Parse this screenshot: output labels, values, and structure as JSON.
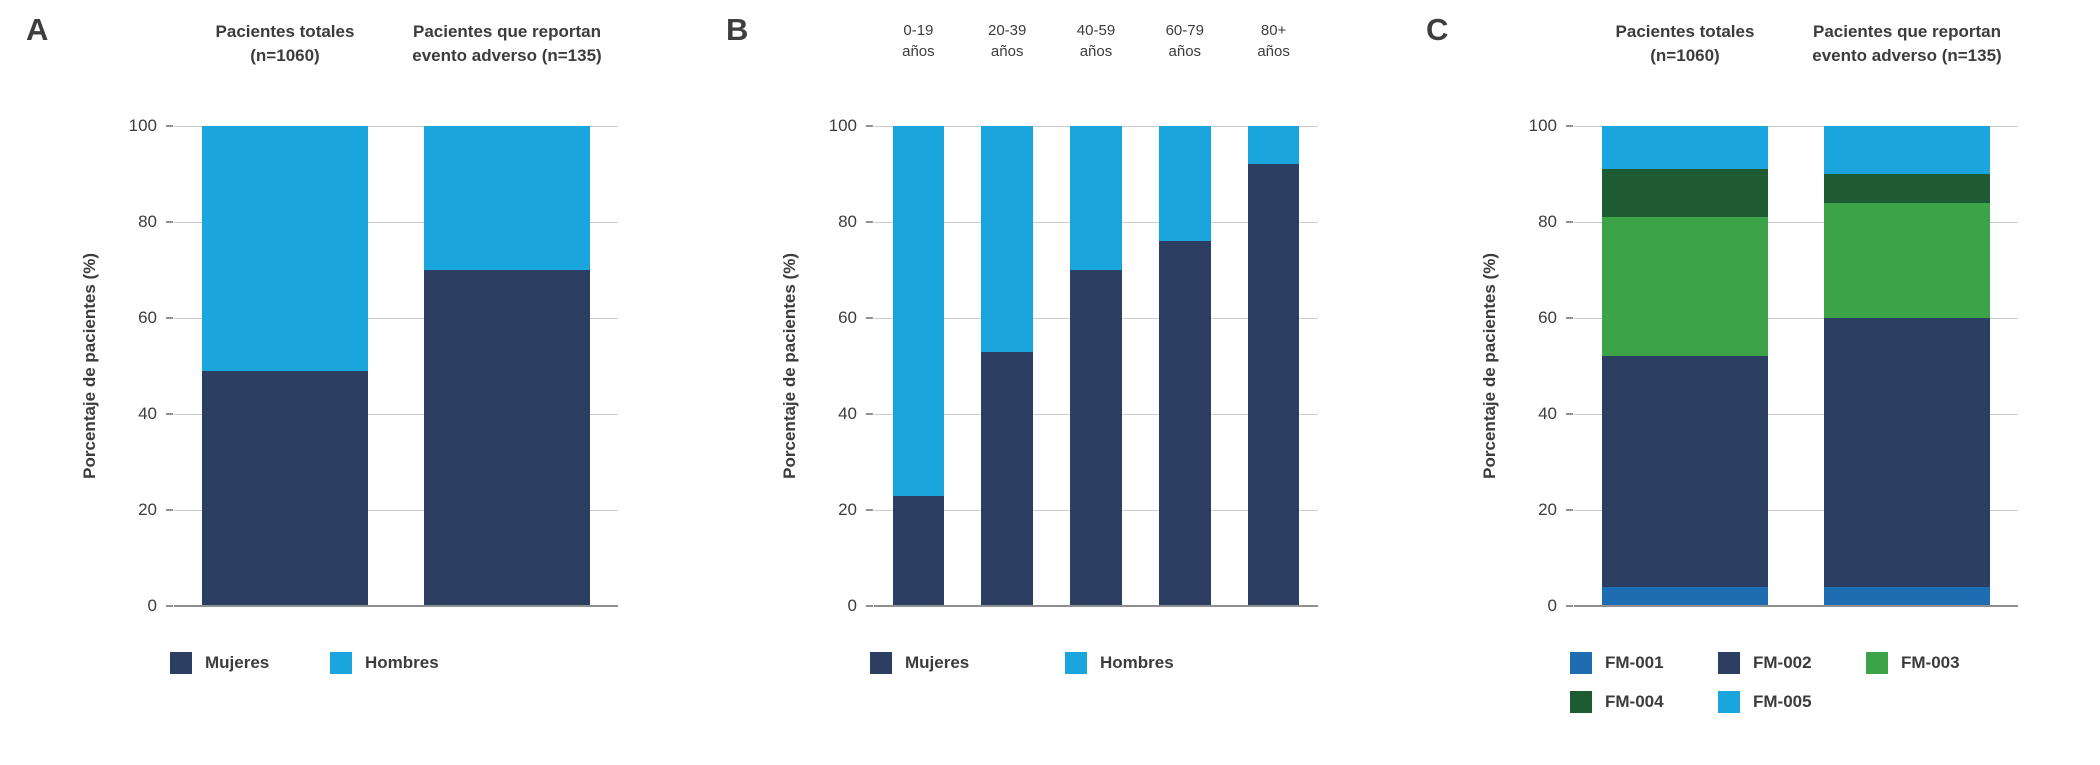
{
  "figure": {
    "background": "#ffffff",
    "y_axis_label": "Porcentaje de pacientes (%)"
  },
  "colors": {
    "mujeres_navy": "#2d3e63",
    "hombres_cyan": "#1aa6dc",
    "fm001_blue": "#1e6cb2",
    "fm002_navy": "#2d3e63",
    "fm003_green": "#3da348",
    "fm004_dark_green": "#1f5b32",
    "fm005_cyan": "#1aa6dc",
    "gridline": "#cdcdcd",
    "baseline": "#8f8f8f",
    "text": "#3c3c3c"
  },
  "chart_data": [
    {
      "panel": "A",
      "type": "bar",
      "stacked": true,
      "ylabel": "Porcentaje de pacientes (%)",
      "ylim": [
        0,
        100
      ],
      "yticks": [
        0,
        20,
        40,
        60,
        80,
        100
      ],
      "grid": true,
      "legend_position": "bottom",
      "categories": [
        [
          "Pacientes totales",
          "(n=1060)"
        ],
        [
          "Pacientes que reportan",
          "evento adverso (n=135)"
        ]
      ],
      "series": [
        {
          "name": "Mujeres",
          "color": "#2d3e63",
          "values": [
            49,
            70
          ]
        },
        {
          "name": "Hombres",
          "color": "#1aa6dc",
          "values": [
            51,
            30
          ]
        }
      ],
      "legend_rows": [
        [
          "Mujeres",
          "Hombres"
        ]
      ],
      "layout": {
        "bar_width_ratio": 0.75,
        "header_class": "",
        "legend_item_min_width": 160
      }
    },
    {
      "panel": "B",
      "type": "bar",
      "stacked": true,
      "ylabel": "Porcentaje de pacientes (%)",
      "ylim": [
        0,
        100
      ],
      "yticks": [
        0,
        20,
        40,
        60,
        80,
        100
      ],
      "grid": true,
      "legend_position": "bottom",
      "categories": [
        [
          "0-19",
          "años"
        ],
        [
          "20-39",
          "años"
        ],
        [
          "40-59",
          "años"
        ],
        [
          "60-79",
          "años"
        ],
        [
          "80+",
          "años"
        ]
      ],
      "series": [
        {
          "name": "Mujeres",
          "color": "#2d3e63",
          "values": [
            23,
            53,
            70,
            76,
            92
          ]
        },
        {
          "name": "Hombres",
          "color": "#1aa6dc",
          "values": [
            77,
            47,
            30,
            24,
            8
          ]
        }
      ],
      "legend_rows": [
        [
          "Mujeres",
          "Hombres"
        ]
      ],
      "layout": {
        "bar_width_ratio": 0.58,
        "header_class": "age",
        "legend_item_min_width": 195
      }
    },
    {
      "panel": "C",
      "type": "bar",
      "stacked": true,
      "ylabel": "Porcentaje de pacientes (%)",
      "ylim": [
        0,
        100
      ],
      "yticks": [
        0,
        20,
        40,
        60,
        80,
        100
      ],
      "grid": true,
      "legend_position": "bottom",
      "categories": [
        [
          "Pacientes totales",
          "(n=1060)"
        ],
        [
          "Pacientes que reportan",
          "evento adverso (n=135)"
        ]
      ],
      "series": [
        {
          "name": "FM-001",
          "color": "#1e6cb2",
          "values": [
            4,
            4
          ]
        },
        {
          "name": "FM-002",
          "color": "#2d3e63",
          "values": [
            48,
            56
          ]
        },
        {
          "name": "FM-003",
          "color": "#3da348",
          "values": [
            29,
            24
          ]
        },
        {
          "name": "FM-004",
          "color": "#1f5b32",
          "values": [
            10,
            6
          ]
        },
        {
          "name": "FM-005",
          "color": "#1aa6dc",
          "values": [
            9,
            10
          ]
        }
      ],
      "legend_rows": [
        [
          "FM-001",
          "FM-002",
          "FM-003"
        ],
        [
          "FM-004",
          "FM-005"
        ]
      ],
      "layout": {
        "bar_width_ratio": 0.75,
        "header_class": "",
        "legend_item_min_width": 148
      }
    }
  ]
}
